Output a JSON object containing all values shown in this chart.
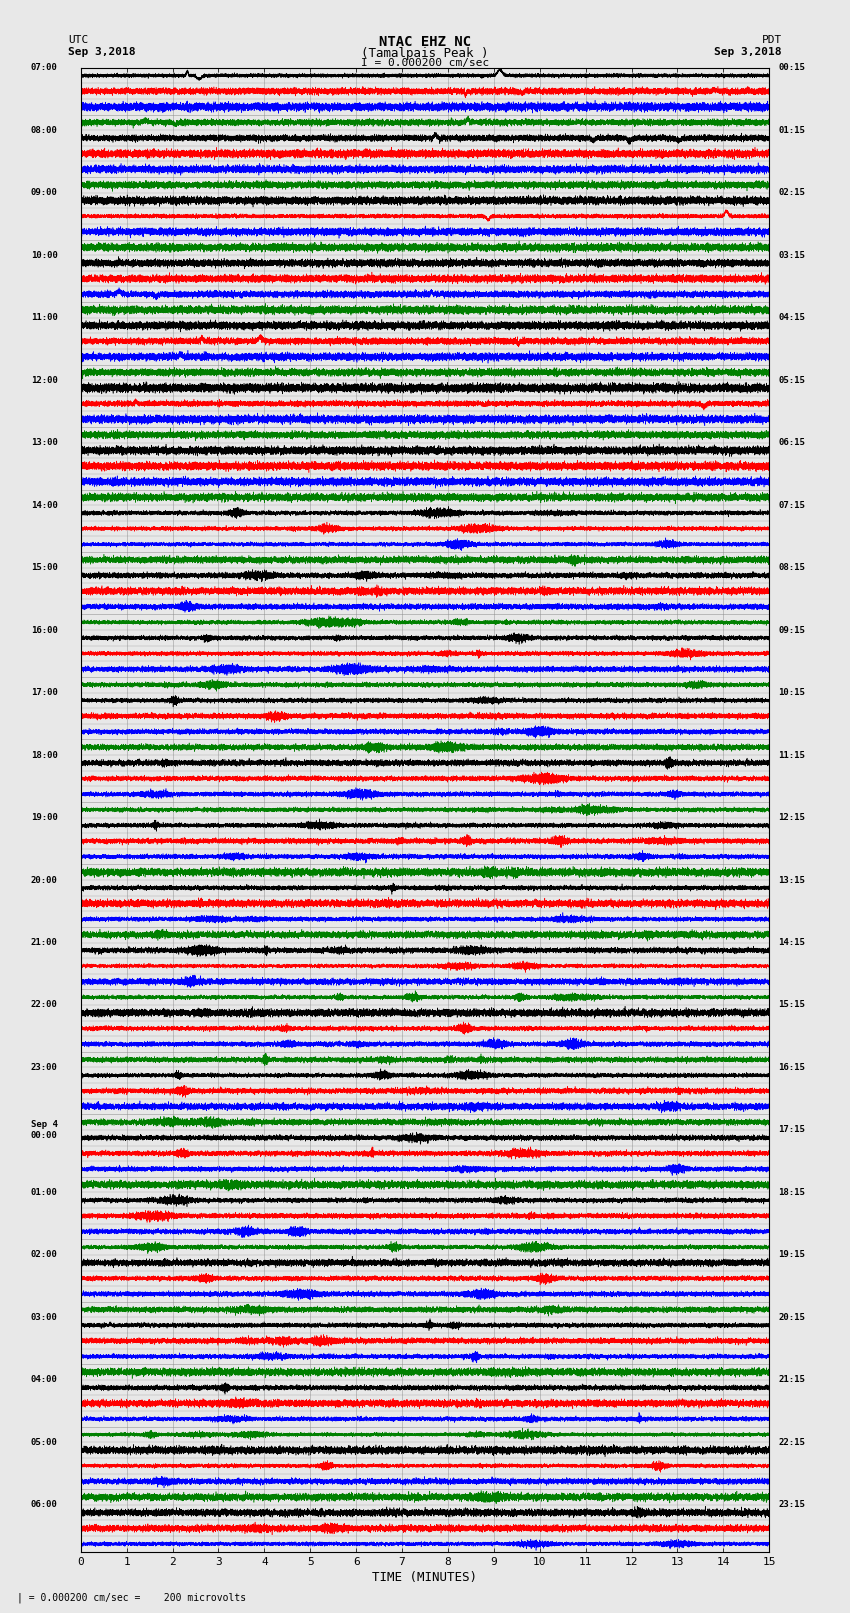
{
  "title_line1": "NTAC EHZ NC",
  "title_line2": "(Tamalpais Peak )",
  "scale_label": "I = 0.000200 cm/sec",
  "left_header_line1": "UTC",
  "left_header_line2": "Sep 3,2018",
  "right_header_line1": "PDT",
  "right_header_line2": "Sep 3,2018",
  "bottom_note": "| = 0.000200 cm/sec =    200 microvolts",
  "xlabel": "TIME (MINUTES)",
  "left_times": [
    "07:00",
    "",
    "",
    "",
    "08:00",
    "",
    "",
    "",
    "09:00",
    "",
    "",
    "",
    "10:00",
    "",
    "",
    "",
    "11:00",
    "",
    "",
    "",
    "12:00",
    "",
    "",
    "",
    "13:00",
    "",
    "",
    "",
    "14:00",
    "",
    "",
    "",
    "15:00",
    "",
    "",
    "",
    "16:00",
    "",
    "",
    "",
    "17:00",
    "",
    "",
    "",
    "18:00",
    "",
    "",
    "",
    "19:00",
    "",
    "",
    "",
    "20:00",
    "",
    "",
    "",
    "21:00",
    "",
    "",
    "",
    "22:00",
    "",
    "",
    "",
    "23:00",
    "",
    "",
    "",
    "Sep 4\n00:00",
    "",
    "",
    "",
    "01:00",
    "",
    "",
    "",
    "02:00",
    "",
    "",
    "",
    "03:00",
    "",
    "",
    "",
    "04:00",
    "",
    "",
    "",
    "05:00",
    "",
    "",
    "",
    "06:00",
    "",
    ""
  ],
  "right_times": [
    "00:15",
    "",
    "",
    "",
    "01:15",
    "",
    "",
    "",
    "02:15",
    "",
    "",
    "",
    "03:15",
    "",
    "",
    "",
    "04:15",
    "",
    "",
    "",
    "05:15",
    "",
    "",
    "",
    "06:15",
    "",
    "",
    "",
    "07:15",
    "",
    "",
    "",
    "08:15",
    "",
    "",
    "",
    "09:15",
    "",
    "",
    "",
    "10:15",
    "",
    "",
    "",
    "11:15",
    "",
    "",
    "",
    "12:15",
    "",
    "",
    "",
    "13:15",
    "",
    "",
    "",
    "14:15",
    "",
    "",
    "",
    "15:15",
    "",
    "",
    "",
    "16:15",
    "",
    "",
    "",
    "17:15",
    "",
    "",
    "",
    "18:15",
    "",
    "",
    "",
    "19:15",
    "",
    "",
    "",
    "20:15",
    "",
    "",
    "",
    "21:15",
    "",
    "",
    "",
    "22:15",
    "",
    "",
    "",
    "23:15",
    "",
    ""
  ],
  "n_rows": 95,
  "n_minutes": 15,
  "colors_cycle": [
    "black",
    "red",
    "blue",
    "green"
  ],
  "background_color": "#e8e8e8",
  "grid_color": "#888888",
  "fig_width": 8.5,
  "fig_height": 16.13,
  "quiet_rows": 28,
  "quiet_amplitude": 0.06,
  "active_base_amplitude": 0.1,
  "active_max_amplitude": 0.42,
  "trace_linewidth": 0.4
}
